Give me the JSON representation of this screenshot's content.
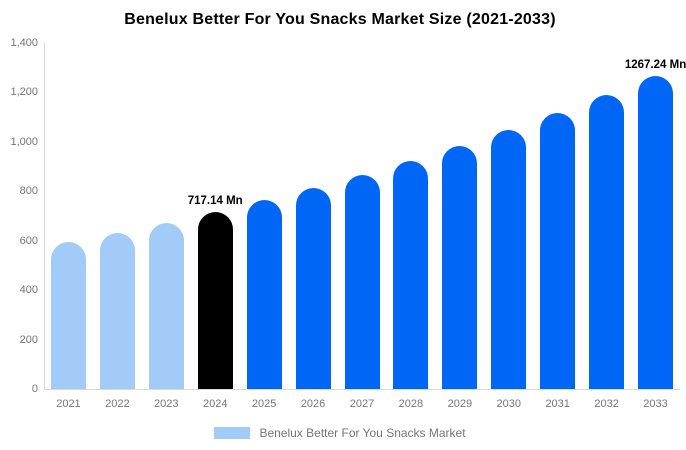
{
  "title": "Benelux Better For You Snacks Market Size (2021-2033)",
  "legend": {
    "label": "Benelux Better For You Snacks Market"
  },
  "colors": {
    "past": "#a2cbf8",
    "current": "#000000",
    "forecast": "#0066f5",
    "axis_text": "#757575",
    "axis_line": "#d9d9d9",
    "annotation_text": "#000000"
  },
  "y_axis": {
    "min": 0,
    "max": 1400,
    "tick_step": 200,
    "tick_labels": [
      "0",
      "200",
      "400",
      "600",
      "800",
      "1,000",
      "1,200",
      "1,400"
    ]
  },
  "chart_data": {
    "type": "bar",
    "title": "Benelux Better For You Snacks Market Size (2021-2033)",
    "unit": "Mn",
    "xlabel": "",
    "ylabel": "",
    "ylim": [
      0,
      1400
    ],
    "grid": false,
    "legend_position": "bottom",
    "categories": [
      "2021",
      "2022",
      "2023",
      "2024",
      "2025",
      "2026",
      "2027",
      "2028",
      "2029",
      "2030",
      "2031",
      "2032",
      "2033"
    ],
    "values": [
      593,
      632,
      673,
      717.14,
      764,
      814,
      867,
      924,
      984,
      1048,
      1117,
      1190,
      1267.24
    ],
    "segments": [
      "past",
      "past",
      "past",
      "current",
      "forecast",
      "forecast",
      "forecast",
      "forecast",
      "forecast",
      "forecast",
      "forecast",
      "forecast",
      "forecast"
    ],
    "annotations": [
      {
        "category": "2024",
        "text": "717.14 Mn"
      },
      {
        "category": "2033",
        "text": "1267.24 Mn"
      }
    ]
  }
}
